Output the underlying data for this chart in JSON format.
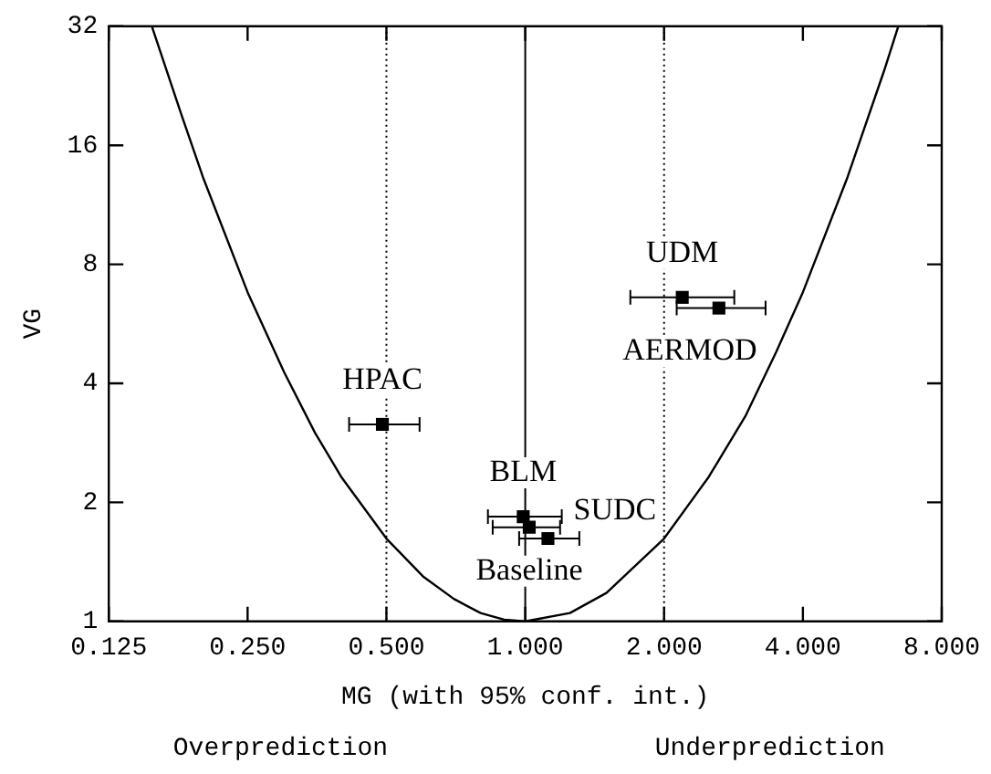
{
  "chart_data": {
    "type": "scatter",
    "xlabel": "MG (with 95% conf. int.)",
    "ylabel": "VG",
    "log": "xy",
    "grid": false,
    "legend": false,
    "marker": "square",
    "xlim": [
      0.125,
      8
    ],
    "ylim": [
      1,
      32
    ],
    "xticks": [
      {
        "value": 0.125,
        "label": "0.125"
      },
      {
        "value": 0.25,
        "label": "0.250"
      },
      {
        "value": 0.5,
        "label": "0.500"
      },
      {
        "value": 1,
        "label": "1.000"
      },
      {
        "value": 2,
        "label": "2.000"
      },
      {
        "value": 4,
        "label": "4.000"
      },
      {
        "value": 8,
        "label": "8.000"
      }
    ],
    "yticks": [
      1,
      2,
      4,
      8,
      16,
      32
    ],
    "ref_lines": [
      {
        "axis": "x",
        "value": 0.5,
        "line_style": "dotted",
        "color": "#000000"
      },
      {
        "axis": "x",
        "value": 1,
        "line_style": "solid",
        "color": "#000000"
      },
      {
        "axis": "x",
        "value": 2,
        "line_style": "dotted",
        "color": "#000000"
      }
    ],
    "series": [
      {
        "type": "line",
        "marker": "none",
        "color": "#000000",
        "x": [
          0.155,
          0.18,
          0.2,
          0.25,
          0.3,
          0.35,
          0.4,
          0.5,
          0.6,
          0.7,
          0.8,
          0.9,
          1,
          1.25,
          1.5,
          2,
          2.5,
          3,
          3.5,
          4,
          5,
          6,
          6.44
        ],
        "values": [
          32,
          19,
          13.3,
          6.8,
          4.27,
          3.0,
          2.31,
          1.62,
          1.3,
          1.14,
          1.05,
          1.01,
          1,
          1.05,
          1.18,
          1.62,
          2.32,
          3.3,
          4.8,
          6.8,
          13.3,
          24.7,
          32
        ]
      },
      {
        "name": "HPAC",
        "color": "#000000",
        "x": [
          0.49
        ],
        "values": [
          3.15
        ],
        "xerrors": [
          [
            0.415,
            0.59
          ]
        ]
      },
      {
        "name": "BLM",
        "color": "#000000",
        "x": [
          0.99
        ],
        "values": [
          1.84
        ],
        "xerrors": [
          [
            0.83,
            1.2
          ]
        ]
      },
      {
        "name": "Baseline",
        "color": "#000000",
        "x": [
          1.02
        ],
        "values": [
          1.73
        ],
        "xerrors": [
          [
            0.85,
            1.19
          ]
        ]
      },
      {
        "name": "SUDC",
        "color": "#000000",
        "x": [
          1.12
        ],
        "values": [
          1.62
        ],
        "xerrors": [
          [
            0.97,
            1.31
          ]
        ]
      },
      {
        "name": "UDM",
        "color": "#000000",
        "x": [
          2.19
        ],
        "values": [
          6.6
        ],
        "xerrors": [
          [
            1.69,
            2.84
          ]
        ]
      },
      {
        "name": "AERMOD",
        "color": "#000000",
        "x": [
          2.63
        ],
        "values": [
          6.2
        ],
        "xerrors": [
          [
            2.13,
            3.32
          ]
        ]
      }
    ],
    "annotations": [
      "Overprediction",
      "Underprediction"
    ]
  }
}
